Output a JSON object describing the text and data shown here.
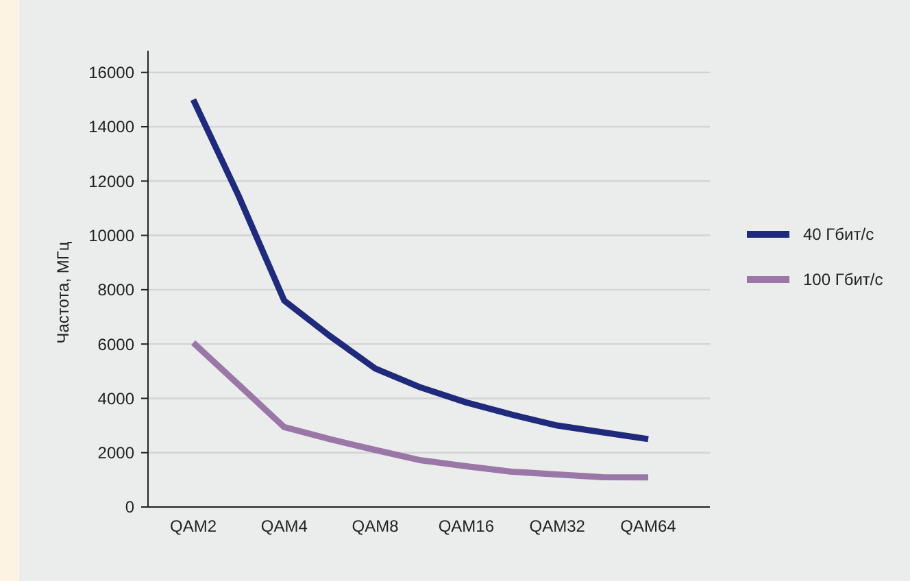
{
  "chart_data": {
    "type": "line",
    "ylabel": "Частота, МГц",
    "categories": [
      "QAM2",
      null,
      "QAM4",
      null,
      "QAM8",
      null,
      "QAM16",
      null,
      "QAM32",
      null,
      "QAM64"
    ],
    "ylim": [
      0,
      16800
    ],
    "yticks": [
      0,
      2000,
      4000,
      6000,
      8000,
      10000,
      12000,
      14000,
      16000
    ],
    "grid": "y",
    "legend": "right",
    "marker": "none",
    "line_style": "solid",
    "series": [
      {
        "name": "40 Гбит/с",
        "color": "#1f2a7c",
        "values": [
          15000,
          11450,
          7600,
          6300,
          5100,
          4400,
          3850,
          3400,
          3000,
          2750,
          2500
        ]
      },
      {
        "name": "100 Гбит/с",
        "color": "#9b77a8",
        "values": [
          6050,
          4500,
          2940,
          2500,
          2100,
          1720,
          1500,
          1300,
          1200,
          1100,
          1090
        ]
      }
    ]
  }
}
